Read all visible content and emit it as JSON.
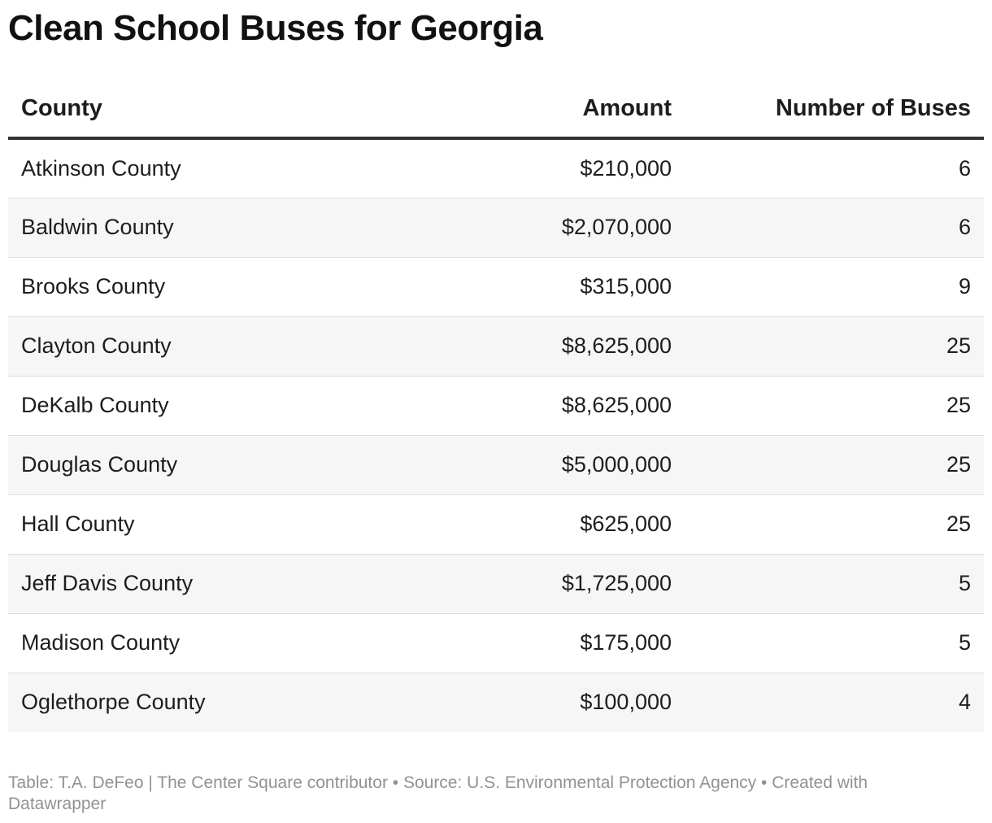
{
  "chart_data": {
    "type": "table",
    "title": "Clean School Buses for Georgia",
    "columns": [
      "County",
      "Amount",
      "Number of Buses"
    ],
    "rows": [
      {
        "county": "Atkinson County",
        "amount": "$210,000",
        "buses": "6"
      },
      {
        "county": "Baldwin County",
        "amount": "$2,070,000",
        "buses": "6"
      },
      {
        "county": "Brooks County",
        "amount": "$315,000",
        "buses": "9"
      },
      {
        "county": "Clayton County",
        "amount": "$8,625,000",
        "buses": "25"
      },
      {
        "county": "DeKalb County",
        "amount": "$8,625,000",
        "buses": "25"
      },
      {
        "county": "Douglas County",
        "amount": "$5,000,000",
        "buses": "25"
      },
      {
        "county": "Hall County",
        "amount": "$625,000",
        "buses": "25"
      },
      {
        "county": "Jeff Davis County",
        "amount": "$1,725,000",
        "buses": "5"
      },
      {
        "county": "Madison County",
        "amount": "$175,000",
        "buses": "5"
      },
      {
        "county": "Oglethorpe County",
        "amount": "$100,000",
        "buses": "4"
      }
    ],
    "footer": "Table: T.A. DeFeo | The Center Square contributor • Source: U.S. Environmental Protection Agency • Created with Datawrapper"
  },
  "colors": {
    "text": "#1d1d1d",
    "header_rule": "#333333",
    "row_stripe": "#f6f6f6",
    "row_divider": "#dedede",
    "footer_text": "#929292"
  }
}
